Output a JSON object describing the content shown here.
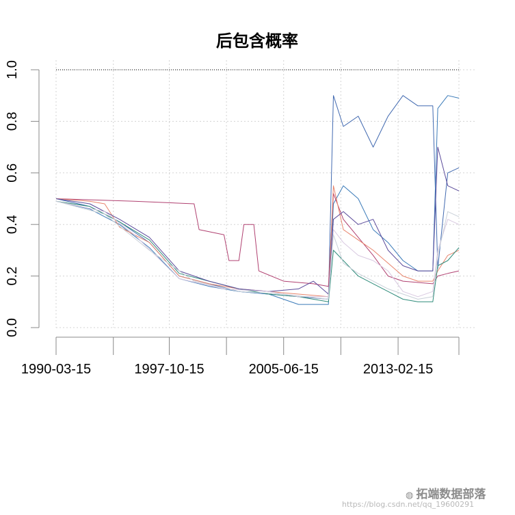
{
  "chart_data": {
    "type": "line",
    "title": "后包含概率",
    "xlabel": "",
    "ylabel": "",
    "x_range": [
      "1990-03-15",
      "2017-03-15"
    ],
    "ylim": [
      0,
      1
    ],
    "y_ticks": [
      "0.0",
      "0.2",
      "0.4",
      "0.6",
      "0.8",
      "1.0"
    ],
    "x_tick_labels": [
      "1990-03-15",
      "1997-10-15",
      "2005-06-15",
      "2013-02-15"
    ],
    "x_tick_dates": [
      "1990-03-15",
      "1994-01-15",
      "1997-10-15",
      "2001-08-15",
      "2005-06-15",
      "2009-04-15",
      "2013-02-15",
      "2017-03-15"
    ],
    "grid": true,
    "legend": "none",
    "reference_line": {
      "y": 1.0,
      "color": "#000000",
      "style": "dotted"
    },
    "series": [
      {
        "color": "#4169b0",
        "points": [
          [
            "1990-03-15",
            0.5
          ],
          [
            "1992-06-15",
            0.47
          ],
          [
            "1994-06-15",
            0.41
          ],
          [
            "1996-06-15",
            0.33
          ],
          [
            "1998-06-15",
            0.2
          ],
          [
            "2000-06-15",
            0.17
          ],
          [
            "2002-06-15",
            0.14
          ],
          [
            "2004-06-15",
            0.13
          ],
          [
            "2006-06-15",
            0.12
          ],
          [
            "2008-06-15",
            0.11
          ],
          [
            "2008-10-15",
            0.9
          ],
          [
            "2009-06-15",
            0.78
          ],
          [
            "2010-06-15",
            0.82
          ],
          [
            "2011-06-15",
            0.7
          ],
          [
            "2012-06-15",
            0.82
          ],
          [
            "2013-06-15",
            0.9
          ],
          [
            "2014-06-15",
            0.86
          ],
          [
            "2015-06-15",
            0.86
          ],
          [
            "2015-10-15",
            0.23
          ],
          [
            "2016-06-15",
            0.6
          ],
          [
            "2017-03-15",
            0.62
          ]
        ]
      },
      {
        "color": "#3a7ab8",
        "points": [
          [
            "1990-03-15",
            0.49
          ],
          [
            "1992-06-15",
            0.46
          ],
          [
            "1994-06-15",
            0.4
          ],
          [
            "1996-06-15",
            0.31
          ],
          [
            "1998-06-15",
            0.19
          ],
          [
            "2000-06-15",
            0.16
          ],
          [
            "2002-06-15",
            0.14
          ],
          [
            "2004-06-15",
            0.13
          ],
          [
            "2006-06-15",
            0.09
          ],
          [
            "2008-06-15",
            0.09
          ],
          [
            "2008-10-15",
            0.48
          ],
          [
            "2009-06-15",
            0.55
          ],
          [
            "2010-06-15",
            0.5
          ],
          [
            "2011-06-15",
            0.38
          ],
          [
            "2012-06-15",
            0.33
          ],
          [
            "2013-06-15",
            0.26
          ],
          [
            "2014-06-15",
            0.22
          ],
          [
            "2015-06-15",
            0.22
          ],
          [
            "2015-10-15",
            0.85
          ],
          [
            "2016-06-15",
            0.9
          ],
          [
            "2017-03-15",
            0.89
          ]
        ]
      },
      {
        "color": "#b04070",
        "points": [
          [
            "1990-03-15",
            0.5
          ],
          [
            "1995-06-15",
            0.49
          ],
          [
            "1999-06-15",
            0.48
          ],
          [
            "1999-10-15",
            0.38
          ],
          [
            "2001-06-15",
            0.36
          ],
          [
            "2001-10-15",
            0.26
          ],
          [
            "2002-06-15",
            0.26
          ],
          [
            "2002-10-15",
            0.4
          ],
          [
            "2003-06-15",
            0.4
          ],
          [
            "2003-10-15",
            0.22
          ],
          [
            "2005-06-15",
            0.18
          ],
          [
            "2007-06-15",
            0.17
          ],
          [
            "2008-06-15",
            0.16
          ],
          [
            "2008-10-15",
            0.52
          ],
          [
            "2009-06-15",
            0.42
          ],
          [
            "2010-06-15",
            0.35
          ],
          [
            "2011-06-15",
            0.28
          ],
          [
            "2012-06-15",
            0.2
          ],
          [
            "2013-06-15",
            0.18
          ],
          [
            "2015-06-15",
            0.17
          ],
          [
            "2015-10-15",
            0.2
          ],
          [
            "2016-06-15",
            0.21
          ],
          [
            "2017-03-15",
            0.22
          ]
        ]
      },
      {
        "color": "#e8836b",
        "points": [
          [
            "1990-03-15",
            0.5
          ],
          [
            "1992-06-15",
            0.49
          ],
          [
            "1993-06-15",
            0.48
          ],
          [
            "1994-06-15",
            0.39
          ],
          [
            "1996-06-15",
            0.33
          ],
          [
            "1998-06-15",
            0.2
          ],
          [
            "2000-06-15",
            0.17
          ],
          [
            "2002-06-15",
            0.15
          ],
          [
            "2004-06-15",
            0.14
          ],
          [
            "2006-06-15",
            0.13
          ],
          [
            "2008-06-15",
            0.12
          ],
          [
            "2008-10-15",
            0.55
          ],
          [
            "2009-06-15",
            0.38
          ],
          [
            "2010-06-15",
            0.34
          ],
          [
            "2011-06-15",
            0.3
          ],
          [
            "2012-06-15",
            0.25
          ],
          [
            "2013-06-15",
            0.2
          ],
          [
            "2014-06-15",
            0.18
          ],
          [
            "2015-06-15",
            0.18
          ],
          [
            "2015-10-15",
            0.22
          ],
          [
            "2016-06-15",
            0.28
          ],
          [
            "2017-03-15",
            0.3
          ]
        ]
      },
      {
        "color": "#2e8b7a",
        "points": [
          [
            "1990-03-15",
            0.49
          ],
          [
            "1992-06-15",
            0.47
          ],
          [
            "1994-06-15",
            0.41
          ],
          [
            "1996-06-15",
            0.34
          ],
          [
            "1998-06-15",
            0.21
          ],
          [
            "2000-06-15",
            0.18
          ],
          [
            "2002-06-15",
            0.15
          ],
          [
            "2004-06-15",
            0.13
          ],
          [
            "2006-06-15",
            0.12
          ],
          [
            "2008-06-15",
            0.1
          ],
          [
            "2008-10-15",
            0.3
          ],
          [
            "2009-06-15",
            0.26
          ],
          [
            "2010-06-15",
            0.2
          ],
          [
            "2011-06-15",
            0.17
          ],
          [
            "2012-06-15",
            0.14
          ],
          [
            "2013-06-15",
            0.11
          ],
          [
            "2014-06-15",
            0.1
          ],
          [
            "2015-06-15",
            0.1
          ],
          [
            "2015-10-15",
            0.24
          ],
          [
            "2016-06-15",
            0.26
          ],
          [
            "2017-03-15",
            0.31
          ]
        ]
      },
      {
        "color": "#5a4a9a",
        "points": [
          [
            "1990-03-15",
            0.5
          ],
          [
            "1992-06-15",
            0.48
          ],
          [
            "1994-06-15",
            0.42
          ],
          [
            "1996-06-15",
            0.35
          ],
          [
            "1998-06-15",
            0.22
          ],
          [
            "2000-06-15",
            0.18
          ],
          [
            "2002-06-15",
            0.15
          ],
          [
            "2004-06-15",
            0.14
          ],
          [
            "2006-06-15",
            0.15
          ],
          [
            "2007-06-15",
            0.18
          ],
          [
            "2008-06-15",
            0.13
          ],
          [
            "2008-10-15",
            0.42
          ],
          [
            "2009-06-15",
            0.45
          ],
          [
            "2010-06-15",
            0.4
          ],
          [
            "2011-06-15",
            0.42
          ],
          [
            "2012-06-15",
            0.3
          ],
          [
            "2013-06-15",
            0.24
          ],
          [
            "2014-06-15",
            0.22
          ],
          [
            "2015-06-15",
            0.22
          ],
          [
            "2015-10-15",
            0.7
          ],
          [
            "2016-06-15",
            0.55
          ],
          [
            "2017-03-15",
            0.53
          ]
        ]
      },
      {
        "color": "#d8c8e0",
        "points": [
          [
            "1990-03-15",
            0.49
          ],
          [
            "1993-06-15",
            0.45
          ],
          [
            "1995-06-15",
            0.36
          ],
          [
            "1998-06-15",
            0.19
          ],
          [
            "2001-06-15",
            0.15
          ],
          [
            "2004-06-15",
            0.14
          ],
          [
            "2006-06-15",
            0.12
          ],
          [
            "2008-06-15",
            0.12
          ],
          [
            "2008-10-15",
            0.38
          ],
          [
            "2009-06-15",
            0.33
          ],
          [
            "2010-06-15",
            0.28
          ],
          [
            "2011-06-15",
            0.26
          ],
          [
            "2012-06-15",
            0.22
          ],
          [
            "2013-06-15",
            0.14
          ],
          [
            "2014-06-15",
            0.12
          ],
          [
            "2015-06-15",
            0.14
          ],
          [
            "2015-10-15",
            0.3
          ],
          [
            "2016-06-15",
            0.42
          ],
          [
            "2017-03-15",
            0.4
          ]
        ]
      },
      {
        "color": "#c9d0d8",
        "points": [
          [
            "1990-03-15",
            0.49
          ],
          [
            "1993-06-15",
            0.44
          ],
          [
            "1996-06-15",
            0.3
          ],
          [
            "1999-06-15",
            0.18
          ],
          [
            "2002-06-15",
            0.14
          ],
          [
            "2005-06-15",
            0.13
          ],
          [
            "2008-06-15",
            0.11
          ],
          [
            "2008-10-15",
            0.36
          ],
          [
            "2009-06-15",
            0.25
          ],
          [
            "2010-06-15",
            0.21
          ],
          [
            "2011-06-15",
            0.18
          ],
          [
            "2012-06-15",
            0.15
          ],
          [
            "2013-06-15",
            0.13
          ],
          [
            "2014-06-15",
            0.11
          ],
          [
            "2015-06-15",
            0.12
          ],
          [
            "2015-10-15",
            0.28
          ],
          [
            "2016-06-15",
            0.45
          ],
          [
            "2017-03-15",
            0.43
          ]
        ]
      }
    ]
  },
  "watermark": {
    "brand_text": "拓端数据部落",
    "url_text": "https://blog.csdn.net/qq_19600291"
  }
}
